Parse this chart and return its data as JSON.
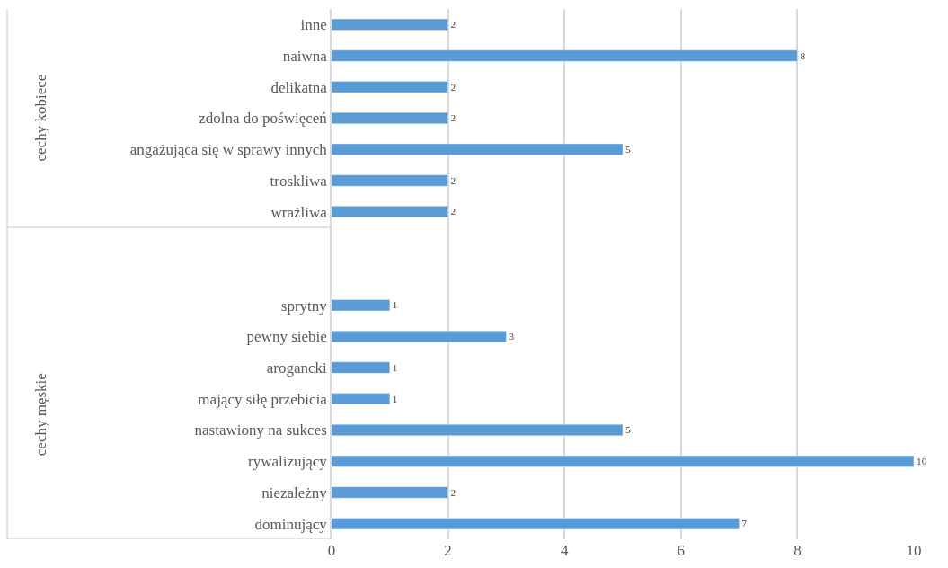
{
  "chart_data": {
    "type": "bar",
    "orientation": "horizontal",
    "categories": [
      "inne",
      "naiwna",
      "delikatna",
      "zdolna do poświęceń",
      "angażująca się w sprawy innych",
      "troskliwa",
      "wrażliwa",
      null,
      null,
      "sprytny",
      "pewny siebie",
      "arogancki",
      "mający siłę przebicia",
      "nastawiony na sukces",
      "rywalizujący",
      "niezależny",
      "dominujący"
    ],
    "values": [
      2,
      8,
      2,
      2,
      5,
      2,
      2,
      null,
      null,
      1,
      3,
      1,
      1,
      5,
      10,
      2,
      7
    ],
    "color": "#5b9bd5",
    "xlim": [
      0,
      10
    ],
    "xticks": [
      0,
      2,
      4,
      6,
      8,
      10
    ],
    "grid": "x",
    "data_labels": true,
    "annotations": [
      "cechy kobiece",
      "cechy męskie"
    ]
  }
}
